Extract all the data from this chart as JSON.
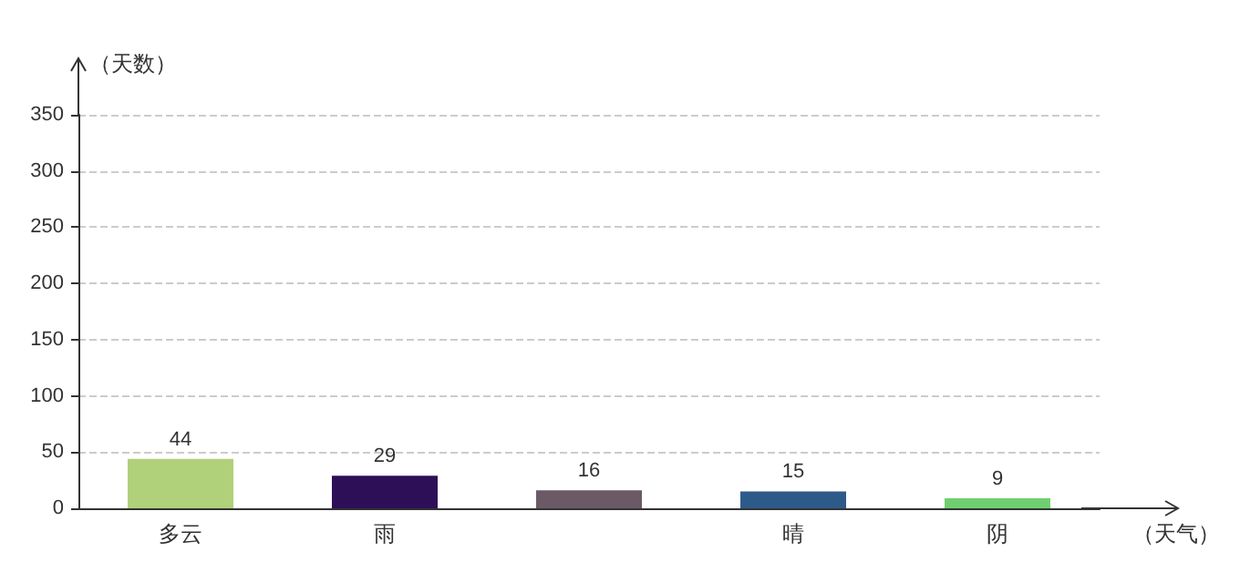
{
  "chart_data": {
    "type": "bar",
    "xlabel": "（天气）",
    "ylabel": "（天数）",
    "categories": [
      "多云",
      "雨",
      null,
      "晴",
      "阴"
    ],
    "values": [
      44,
      29,
      16,
      15,
      9
    ],
    "colors": [
      "#b0d07a",
      "#2d0f57",
      "#6b5a66",
      "#2e5a8a",
      "#6fcf6f"
    ],
    "ylim": [
      0,
      350
    ],
    "yticks": [
      0,
      50,
      100,
      150,
      200,
      250,
      300,
      350
    ],
    "grid": "y",
    "data_labels": true
  }
}
